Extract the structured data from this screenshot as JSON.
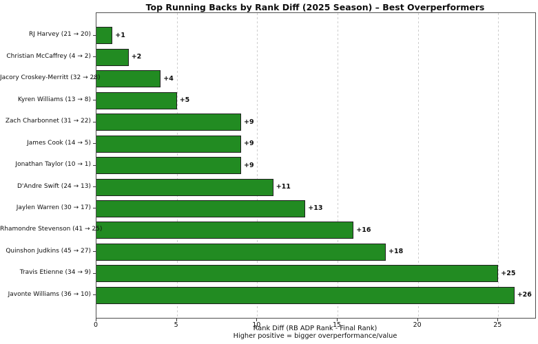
{
  "chart_data": {
    "type": "bar",
    "orientation": "horizontal",
    "title": "Top Running Backs by Rank Diff (2025 Season) – Best Overperformers",
    "xlabel": "Rank Diff (RB ADP Rank - Final Rank)",
    "xlabel_line2": "Higher positive = bigger overperformance/value",
    "categories": [
      "RJ Harvey (21 → 20)",
      "Christian McCaffrey (4 → 2)",
      "Jacory Croskey-Merritt (32 → 28)",
      "Kyren Williams (13 → 8)",
      "Zach Charbonnet (31 → 22)",
      "James Cook (14 → 5)",
      "Jonathan Taylor (10 → 1)",
      "D'Andre Swift (24 → 13)",
      "Jaylen Warren (30 → 17)",
      "Rhamondre Stevenson (41 → 25)",
      "Quinshon Judkins (45 → 27)",
      "Travis Etienne (34 → 9)",
      "Javonte Williams (36 → 10)"
    ],
    "values": [
      1,
      2,
      4,
      5,
      9,
      9,
      9,
      11,
      13,
      16,
      18,
      25,
      26
    ],
    "bar_labels": [
      "+1",
      "+2",
      "+4",
      "+5",
      "+9",
      "+9",
      "+9",
      "+11",
      "+13",
      "+16",
      "+18",
      "+25",
      "+26"
    ],
    "xticks": [
      0,
      5,
      10,
      15,
      20,
      25
    ],
    "xtick_labels": [
      "0",
      "5",
      "10",
      "15",
      "20",
      "25"
    ],
    "xlim": [
      0,
      27.3
    ],
    "grid": "vertical-dashed",
    "legend_position": "none",
    "colors": {
      "bar_fill": "#228B22",
      "bar_edge": "#1f1f1f",
      "grid": "#cdcdcd",
      "spine": "#4d4d4d",
      "background": "#ffffff",
      "text": "#0d0d0d"
    }
  }
}
